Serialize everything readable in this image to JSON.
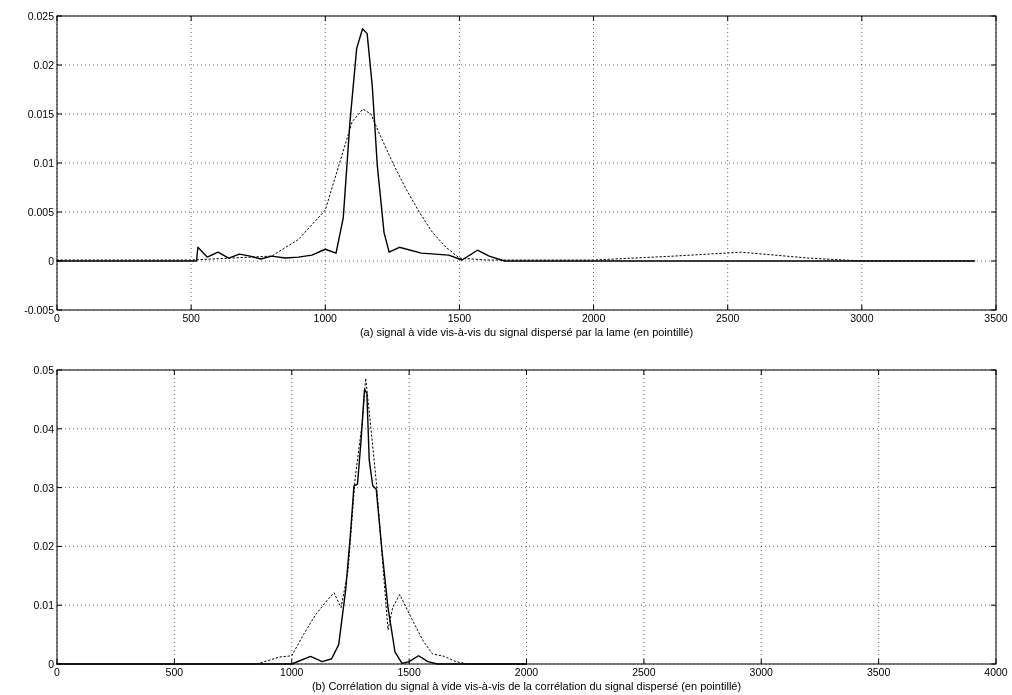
{
  "chart_data": [
    {
      "type": "line",
      "xlabel": "(a) signal à vide vis-à-vis du signal dispersé par la lame (en pointillé)",
      "xlim": [
        0,
        3500
      ],
      "xticks": [
        0,
        500,
        1000,
        1500,
        2000,
        2500,
        3000,
        3500
      ],
      "ylim": [
        -0.005,
        0.025
      ],
      "yticks": [
        -0.005,
        0,
        0.005,
        0.01,
        0.015,
        0.02,
        0.025
      ],
      "grid": true,
      "series": [
        {
          "color": "#000000",
          "line_style": "solid",
          "x": [
            0,
            200,
            400,
            520,
            525,
            560,
            600,
            640,
            680,
            720,
            760,
            800,
            850,
            900,
            950,
            1000,
            1040,
            1067,
            1092,
            1117,
            1139,
            1156,
            1175,
            1194,
            1219,
            1238,
            1276,
            1358,
            1460,
            1510,
            1567,
            1611,
            1668,
            2000,
            2500,
            3000,
            3420
          ],
          "values": [
            0,
            0,
            0,
            0,
            0.0014,
            0.0004,
            0.0009,
            0.0003,
            0.0007,
            0.0005,
            0.0002,
            0.0005,
            0.0003,
            0.0004,
            0.0006,
            0.0012,
            0.0008,
            0.0044,
            0.0142,
            0.0217,
            0.0237,
            0.0232,
            0.0179,
            0.0097,
            0.0029,
            0.0009,
            0.0014,
            0.0008,
            0.0006,
            0.0001,
            0.0011,
            0.0005,
            0,
            0,
            0,
            0,
            0
          ]
        },
        {
          "color": "#000000",
          "line_style": "dotted",
          "x": [
            0,
            500,
            800,
            900,
            1000,
            1050,
            1100,
            1140,
            1170,
            1200,
            1250,
            1300,
            1350,
            1400,
            1450,
            1500,
            1600,
            2000,
            2300,
            2550,
            2800,
            3000,
            3420
          ],
          "values": [
            0.0001,
            0.0001,
            0.0005,
            0.0022,
            0.0052,
            0.0097,
            0.0142,
            0.0155,
            0.015,
            0.0131,
            0.0101,
            0.0074,
            0.005,
            0.0029,
            0.0014,
            0.0003,
            0.0001,
            0.0001,
            0.0005,
            0.0009,
            0.0003,
            0,
            0
          ]
        }
      ]
    },
    {
      "type": "line",
      "xlabel": "(b) Corrélation du signal à vide vis-à-vis de la corrélation du signal dispersé (en pointillé)",
      "xlim": [
        0,
        4000
      ],
      "xticks": [
        0,
        500,
        1000,
        1500,
        2000,
        2500,
        3000,
        3500,
        4000
      ],
      "ylim": [
        0,
        0.05
      ],
      "yticks": [
        0,
        0.01,
        0.02,
        0.03,
        0.04,
        0.05
      ],
      "grid": true,
      "series": [
        {
          "color": "#000000",
          "line_style": "solid",
          "x": [
            0,
            500,
            950,
            1000,
            1080,
            1130,
            1170,
            1200,
            1230,
            1250,
            1265,
            1280,
            1295,
            1310,
            1320,
            1330,
            1345,
            1360,
            1385,
            1410,
            1440,
            1470,
            1500,
            1540,
            1580,
            1620,
            2000
          ],
          "values": [
            0,
            0,
            0,
            0,
            0.0013,
            0.0004,
            0.0009,
            0.0033,
            0.0127,
            0.0221,
            0.0303,
            0.0306,
            0.0379,
            0.0467,
            0.046,
            0.0347,
            0.0303,
            0.0297,
            0.019,
            0.0096,
            0.002,
            0.0001,
            0.0004,
            0.0014,
            0.0004,
            0,
            0
          ]
        },
        {
          "color": "#000000",
          "line_style": "dotted",
          "x": [
            0,
            500,
            850,
            900,
            950,
            1000,
            1050,
            1100,
            1150,
            1180,
            1210,
            1240,
            1270,
            1300,
            1315,
            1335,
            1360,
            1390,
            1410,
            1430,
            1460,
            1480,
            1520,
            1560,
            1600,
            1650,
            1700,
            1750,
            2000
          ],
          "values": [
            0,
            0,
            0,
            0.0006,
            0.0012,
            0.0014,
            0.005,
            0.0083,
            0.0108,
            0.0121,
            0.0096,
            0.0159,
            0.0316,
            0.041,
            0.0486,
            0.041,
            0.031,
            0.0159,
            0.0058,
            0.0096,
            0.0118,
            0.0102,
            0.007,
            0.0039,
            0.0017,
            0.0013,
            0.0004,
            0,
            0
          ]
        }
      ]
    }
  ]
}
